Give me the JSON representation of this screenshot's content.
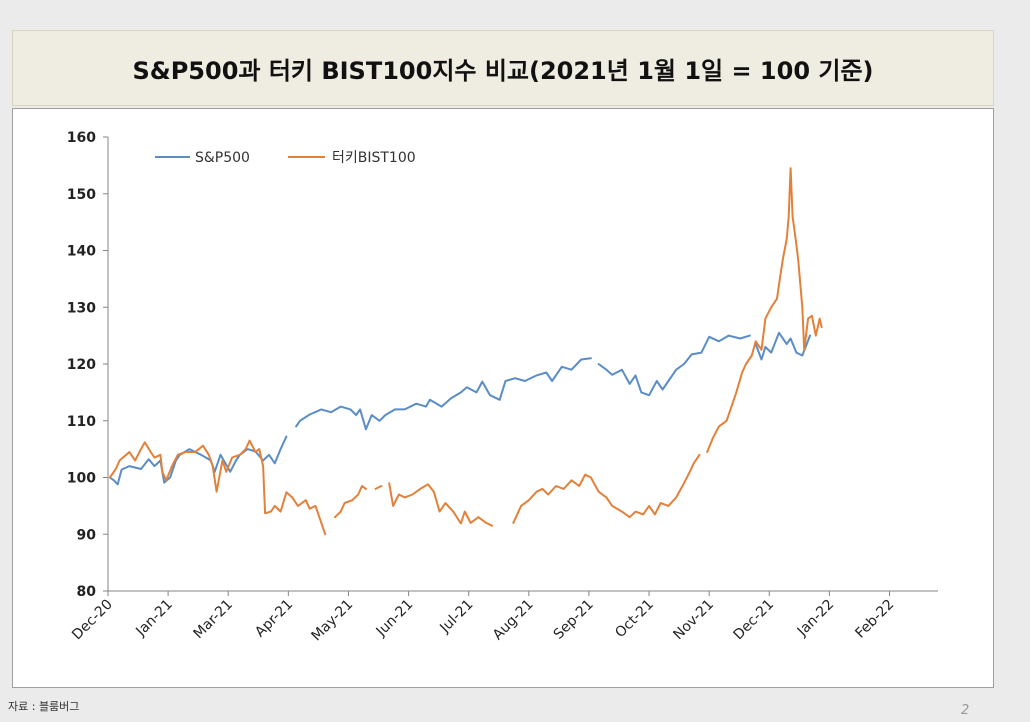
{
  "slide": {
    "source": "자료 : 블룸버그",
    "page_number": "2"
  },
  "colors": {
    "background": "#ebebeb",
    "title_box": "#efece1",
    "panel": "#ffffff"
  },
  "chart_data": {
    "type": "line",
    "title": "S&P500과 터키 BIST100지수 비교(2021년 1월 1일 = 100 기준)",
    "xlabel": "",
    "ylabel": "",
    "x_type": "date",
    "xlim": [
      "2020-12-31",
      "2022-03-04"
    ],
    "ylim": [
      80,
      160
    ],
    "y_ticks": [
      80,
      90,
      100,
      110,
      120,
      130,
      140,
      150,
      160
    ],
    "x_tick_labels": [
      "Dec-20",
      "Jan-21",
      "Mar-21",
      "Apr-21",
      "May-21",
      "Jun-21",
      "Jul-21",
      "Aug-21",
      "Sep-21",
      "Oct-21",
      "Nov-21",
      "Dec-21",
      "Jan-22",
      "Feb-22"
    ],
    "grid": false,
    "legend": "top-left",
    "series": [
      {
        "name": "S&P500",
        "color": "#5a8dc6",
        "points": [
          [
            "2021-01-01",
            100
          ],
          [
            "2021-01-03",
            99.5
          ],
          [
            "2021-01-05",
            98.8
          ],
          [
            "2021-01-07",
            101.4
          ],
          [
            "2021-01-11",
            102
          ],
          [
            "2021-01-17",
            101.5
          ],
          [
            "2021-01-21",
            103.2
          ],
          [
            "2021-01-24",
            102
          ],
          [
            "2021-01-27",
            103
          ],
          [
            "2021-01-29",
            99.1
          ],
          [
            "2021-02-01",
            100
          ],
          [
            "2021-02-04",
            103
          ],
          [
            "2021-02-06",
            104
          ],
          [
            "2021-02-11",
            105
          ],
          [
            "2021-02-17",
            104
          ],
          [
            "2021-02-22",
            103
          ],
          [
            "2021-02-24",
            101
          ],
          [
            "2021-02-27",
            104
          ],
          [
            "2021-03-04",
            101
          ],
          [
            "2021-03-07",
            103
          ],
          [
            "2021-03-09",
            104
          ],
          [
            "2021-03-13",
            105
          ],
          [
            "2021-03-17",
            104.6
          ],
          [
            "2021-03-21",
            103
          ],
          [
            "2021-03-24",
            104
          ],
          [
            "2021-03-27",
            102.5
          ],
          [
            "2021-03-30",
            105
          ],
          [
            "2021-04-02",
            107.2
          ],
          [
            "2021-04-04",
            null
          ],
          [
            "2021-04-07",
            109
          ],
          [
            "2021-04-09",
            110
          ],
          [
            "2021-04-14",
            111.1
          ],
          [
            "2021-04-20",
            112
          ],
          [
            "2021-04-25",
            111.5
          ],
          [
            "2021-04-30",
            112.5
          ],
          [
            "2021-05-05",
            112
          ],
          [
            "2021-05-08",
            111
          ],
          [
            "2021-05-10",
            112
          ],
          [
            "2021-05-13",
            108.5
          ],
          [
            "2021-05-16",
            111
          ],
          [
            "2021-05-20",
            110
          ],
          [
            "2021-05-23",
            111
          ],
          [
            "2021-05-28",
            112
          ],
          [
            "2021-06-02",
            112
          ],
          [
            "2021-06-08",
            113
          ],
          [
            "2021-06-13",
            112.5
          ],
          [
            "2021-06-15",
            113.7
          ],
          [
            "2021-06-21",
            112.5
          ],
          [
            "2021-06-26",
            114
          ],
          [
            "2021-07-01",
            115
          ],
          [
            "2021-07-04",
            115.9
          ],
          [
            "2021-07-09",
            115
          ],
          [
            "2021-07-12",
            116.9
          ],
          [
            "2021-07-16",
            114.5
          ],
          [
            "2021-07-21",
            113.7
          ],
          [
            "2021-07-24",
            117
          ],
          [
            "2021-07-29",
            117.5
          ],
          [
            "2021-08-03",
            117
          ],
          [
            "2021-08-09",
            118
          ],
          [
            "2021-08-14",
            118.5
          ],
          [
            "2021-08-17",
            117
          ],
          [
            "2021-08-22",
            119.5
          ],
          [
            "2021-08-27",
            119
          ],
          [
            "2021-09-01",
            120.8
          ],
          [
            "2021-09-06",
            121
          ],
          [
            "2021-09-08",
            null
          ],
          [
            "2021-09-10",
            120
          ],
          [
            "2021-09-14",
            119
          ],
          [
            "2021-09-17",
            118.1
          ],
          [
            "2021-09-22",
            119
          ],
          [
            "2021-09-26",
            116.5
          ],
          [
            "2021-09-29",
            118
          ],
          [
            "2021-10-02",
            115
          ],
          [
            "2021-10-06",
            114.5
          ],
          [
            "2021-10-10",
            117
          ],
          [
            "2021-10-13",
            115.5
          ],
          [
            "2021-10-16",
            117
          ],
          [
            "2021-10-20",
            119
          ],
          [
            "2021-10-24",
            120
          ],
          [
            "2021-10-28",
            121.7
          ],
          [
            "2021-11-02",
            122
          ],
          [
            "2021-11-06",
            124.8
          ],
          [
            "2021-11-11",
            124
          ],
          [
            "2021-11-16",
            125
          ],
          [
            "2021-11-22",
            124.5
          ],
          [
            "2021-11-27",
            125
          ],
          [
            "2021-11-28",
            null
          ],
          [
            "2021-11-30",
            123.5
          ],
          [
            "2021-12-03",
            120.8
          ],
          [
            "2021-12-05",
            123
          ],
          [
            "2021-12-08",
            122
          ],
          [
            "2021-12-12",
            125.5
          ],
          [
            "2021-12-16",
            123.5
          ],
          [
            "2021-12-18",
            124.5
          ],
          [
            "2021-12-21",
            122
          ],
          [
            "2021-12-24",
            121.5
          ],
          [
            "2021-12-28",
            125
          ]
        ]
      },
      {
        "name": "터키BIST100",
        "color": "#e2813a",
        "points": [
          [
            "2021-01-01",
            100
          ],
          [
            "2021-01-04",
            101.5
          ],
          [
            "2021-01-06",
            103
          ],
          [
            "2021-01-09",
            103.9
          ],
          [
            "2021-01-11",
            104.5
          ],
          [
            "2021-01-14",
            103
          ],
          [
            "2021-01-17",
            105
          ],
          [
            "2021-01-19",
            106.2
          ],
          [
            "2021-01-22",
            104.5
          ],
          [
            "2021-01-24",
            103.5
          ],
          [
            "2021-01-27",
            104
          ],
          [
            "2021-01-28",
            101
          ],
          [
            "2021-01-30",
            99.5
          ],
          [
            "2021-02-02",
            102
          ],
          [
            "2021-02-05",
            104
          ],
          [
            "2021-02-09",
            104.5
          ],
          [
            "2021-02-14",
            104.5
          ],
          [
            "2021-02-18",
            105.6
          ],
          [
            "2021-02-21",
            104
          ],
          [
            "2021-02-23",
            102
          ],
          [
            "2021-02-25",
            97.5
          ],
          [
            "2021-02-28",
            103
          ],
          [
            "2021-03-02",
            101
          ],
          [
            "2021-03-05",
            103.5
          ],
          [
            "2021-03-09",
            104
          ],
          [
            "2021-03-12",
            105
          ],
          [
            "2021-03-14",
            106.5
          ],
          [
            "2021-03-17",
            104.5
          ],
          [
            "2021-03-19",
            105
          ],
          [
            "2021-03-21",
            102
          ],
          [
            "2021-03-22",
            93.7
          ],
          [
            "2021-03-25",
            94
          ],
          [
            "2021-03-27",
            95
          ],
          [
            "2021-03-30",
            94
          ],
          [
            "2021-04-02",
            97.4
          ],
          [
            "2021-04-05",
            96.5
          ],
          [
            "2021-04-08",
            95
          ],
          [
            "2021-04-12",
            96
          ],
          [
            "2021-04-14",
            94.5
          ],
          [
            "2021-04-17",
            95
          ],
          [
            "2021-04-20",
            92
          ],
          [
            "2021-04-22",
            90
          ],
          [
            "2021-04-25",
            null
          ],
          [
            "2021-04-27",
            93
          ],
          [
            "2021-04-30",
            94
          ],
          [
            "2021-05-02",
            95.5
          ],
          [
            "2021-05-06",
            96
          ],
          [
            "2021-05-09",
            97
          ],
          [
            "2021-05-11",
            98.5
          ],
          [
            "2021-05-13",
            98
          ],
          [
            "2021-05-15",
            null
          ],
          [
            "2021-05-18",
            98
          ],
          [
            "2021-05-21",
            98.5
          ],
          [
            "2021-05-23",
            null
          ],
          [
            "2021-05-25",
            99
          ],
          [
            "2021-05-27",
            95
          ],
          [
            "2021-05-30",
            97
          ],
          [
            "2021-06-02",
            96.5
          ],
          [
            "2021-06-06",
            97
          ],
          [
            "2021-06-10",
            98
          ],
          [
            "2021-06-14",
            98.8
          ],
          [
            "2021-06-17",
            97.5
          ],
          [
            "2021-06-20",
            94
          ],
          [
            "2021-06-23",
            95.5
          ],
          [
            "2021-06-27",
            94
          ],
          [
            "2021-07-01",
            91.9
          ],
          [
            "2021-07-03",
            94
          ],
          [
            "2021-07-06",
            92
          ],
          [
            "2021-07-10",
            93
          ],
          [
            "2021-07-14",
            92
          ],
          [
            "2021-07-17",
            91.5
          ],
          [
            "2021-07-22",
            null
          ],
          [
            "2021-07-28",
            92
          ],
          [
            "2021-08-01",
            95
          ],
          [
            "2021-08-05",
            96
          ],
          [
            "2021-08-09",
            97.5
          ],
          [
            "2021-08-12",
            98
          ],
          [
            "2021-08-15",
            97
          ],
          [
            "2021-08-19",
            98.5
          ],
          [
            "2021-08-23",
            98
          ],
          [
            "2021-08-27",
            99.5
          ],
          [
            "2021-08-31",
            98.5
          ],
          [
            "2021-09-03",
            100.5
          ],
          [
            "2021-09-06",
            100
          ],
          [
            "2021-09-10",
            97.5
          ],
          [
            "2021-09-14",
            96.5
          ],
          [
            "2021-09-17",
            95
          ],
          [
            "2021-09-22",
            94
          ],
          [
            "2021-09-26",
            93
          ],
          [
            "2021-09-29",
            94
          ],
          [
            "2021-10-03",
            93.5
          ],
          [
            "2021-10-06",
            95
          ],
          [
            "2021-10-09",
            93.5
          ],
          [
            "2021-10-12",
            95.5
          ],
          [
            "2021-10-16",
            95
          ],
          [
            "2021-10-20",
            96.5
          ],
          [
            "2021-10-24",
            99
          ],
          [
            "2021-10-27",
            101
          ],
          [
            "2021-10-29",
            102.5
          ],
          [
            "2021-11-01",
            104
          ],
          [
            "2021-11-03",
            null
          ],
          [
            "2021-11-05",
            104.5
          ],
          [
            "2021-11-08",
            107
          ],
          [
            "2021-11-11",
            109
          ],
          [
            "2021-11-15",
            110
          ],
          [
            "2021-11-17",
            112
          ],
          [
            "2021-11-20",
            115
          ],
          [
            "2021-11-23",
            118.5
          ],
          [
            "2021-11-25",
            120
          ],
          [
            "2021-11-28",
            121.5
          ],
          [
            "2021-11-30",
            124
          ],
          [
            "2021-12-03",
            122.5
          ],
          [
            "2021-12-05",
            128
          ],
          [
            "2021-12-08",
            130
          ],
          [
            "2021-12-11",
            131.5
          ],
          [
            "2021-12-12",
            134
          ],
          [
            "2021-12-14",
            138.5
          ],
          [
            "2021-12-16",
            142
          ],
          [
            "2021-12-17",
            146
          ],
          [
            "2021-12-18",
            154.5
          ],
          [
            "2021-12-19",
            146
          ],
          [
            "2021-12-21",
            141
          ],
          [
            "2021-12-22",
            138
          ],
          [
            "2021-12-24",
            130
          ],
          [
            "2021-12-25",
            122.5
          ],
          [
            "2021-12-27",
            128
          ],
          [
            "2021-12-29",
            128.5
          ],
          [
            "2021-12-31",
            125
          ],
          [
            "2022-01-02",
            128
          ],
          [
            "2022-01-03",
            126.5
          ]
        ]
      }
    ]
  }
}
